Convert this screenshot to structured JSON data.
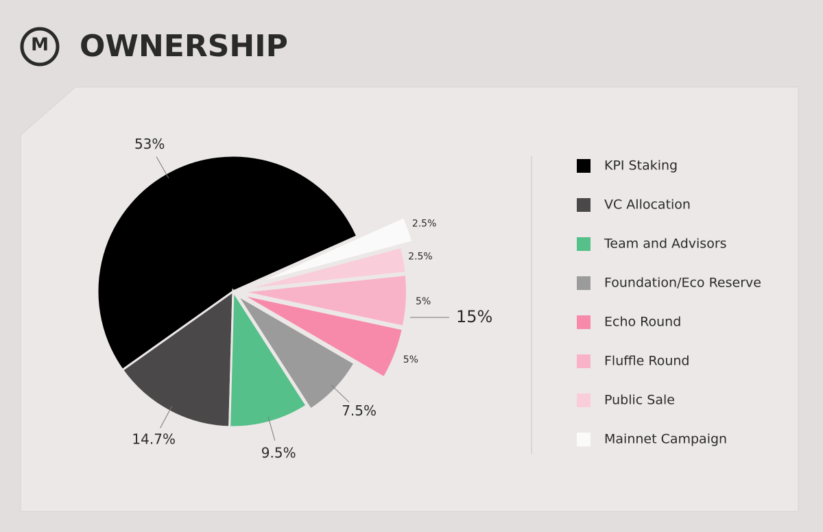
{
  "logo": "M",
  "chart_data": {
    "type": "pie",
    "title": "OWNERSHIP",
    "categories": [
      "KPI Staking",
      "VC Allocation",
      "Team and Advisors",
      "Foundation/Eco Reserve",
      "Echo Round",
      "Fluffle Round",
      "Public Sale",
      "Mainnet Campaign"
    ],
    "values": [
      53,
      14.7,
      9.5,
      7.5,
      5,
      5,
      2.5,
      2.5
    ],
    "value_labels": [
      "53%",
      "14.7%",
      "9.5%",
      "7.5%",
      "5%",
      "5%",
      "2.5%",
      "2.5%"
    ],
    "colors": [
      "#000000",
      "#4a4848",
      "#55c08a",
      "#9b9b9b",
      "#f78aab",
      "#f9b3c8",
      "#f9cdd9",
      "#fbfafa"
    ],
    "annotation": "15%"
  }
}
